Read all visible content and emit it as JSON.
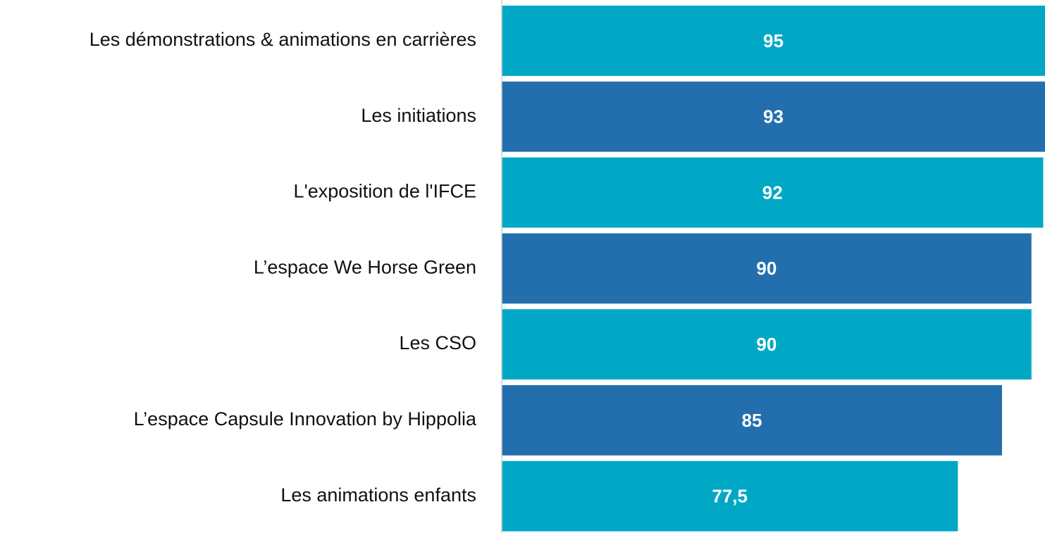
{
  "chart_data": {
    "type": "barh",
    "categories": [
      "Les démonstrations & animations en carrières",
      "Les initiations",
      "L'exposition de l'IFCE",
      "L’espace We Horse Green",
      "Les CSO",
      "L’espace Capsule Innovation by Hippolia",
      "Les animations enfants"
    ],
    "values": [
      95,
      93,
      92,
      90,
      90,
      85,
      77.5
    ],
    "value_labels": [
      "95",
      "93",
      "92",
      "90",
      "90",
      "85",
      "77,5"
    ],
    "colors": [
      "#00a8c6",
      "#236fad",
      "#00a8c6",
      "#236fad",
      "#00a8c6",
      "#236fad",
      "#00a8c6"
    ],
    "xlim": [
      0,
      92.3
    ]
  }
}
